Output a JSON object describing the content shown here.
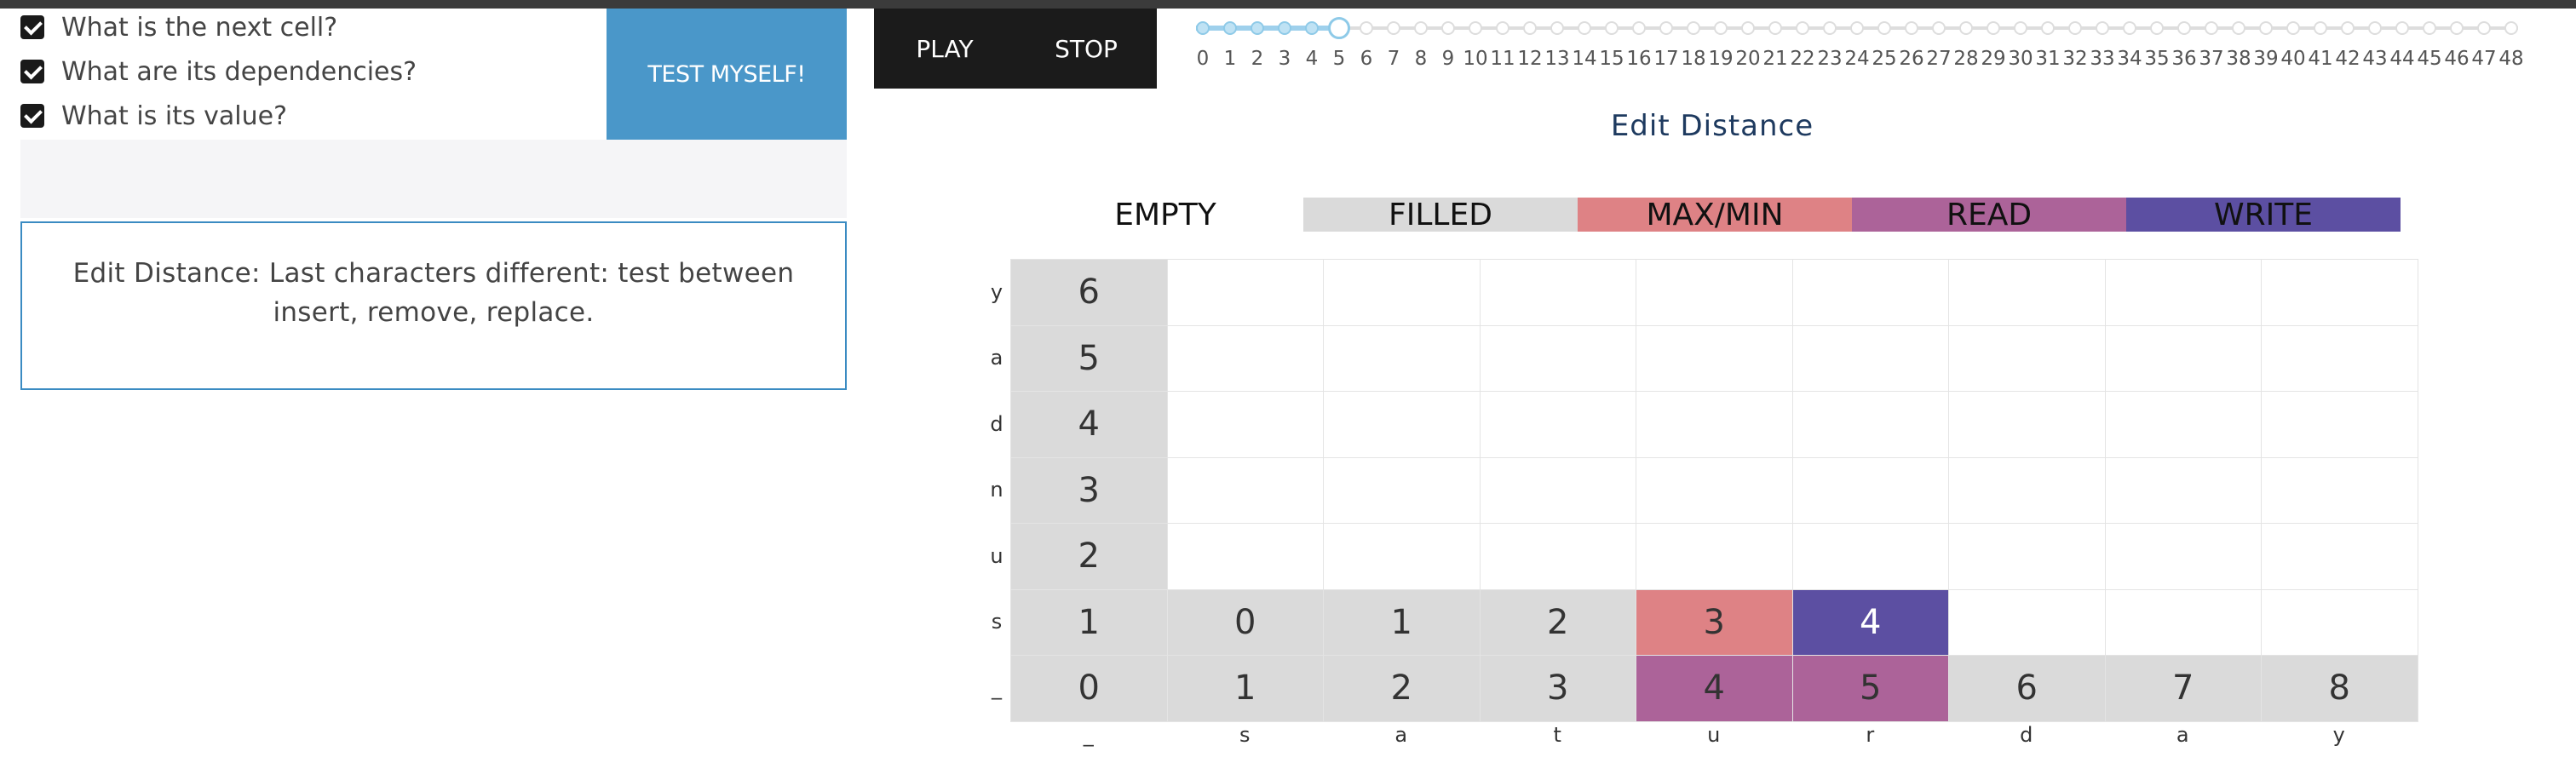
{
  "questions": [
    {
      "label": "What is the next cell?",
      "checked": true
    },
    {
      "label": "What are its dependencies?",
      "checked": true
    },
    {
      "label": "What is its value?",
      "checked": true
    }
  ],
  "test_button": "TEST MYSELF!",
  "message": "Edit Distance: Last characters different: test between insert, remove, replace.",
  "controls": {
    "play": "PLAY",
    "stop": "STOP"
  },
  "slider": {
    "current": 5,
    "steps": [
      "0",
      "1",
      "2",
      "3",
      "4",
      "5",
      "6",
      "7",
      "8",
      "9",
      "10",
      "11",
      "12",
      "13",
      "14",
      "15",
      "16",
      "17",
      "18",
      "19",
      "20",
      "21",
      "22",
      "23",
      "24",
      "25",
      "26",
      "27",
      "28",
      "29",
      "30",
      "31",
      "32",
      "33",
      "34",
      "35",
      "36",
      "37",
      "38",
      "39",
      "40",
      "41",
      "42",
      "43",
      "44",
      "45",
      "46",
      "47",
      "48"
    ]
  },
  "title": "Edit Distance",
  "legend": [
    {
      "label": "EMPTY",
      "color": "#ffffff"
    },
    {
      "label": "FILLED",
      "color": "#dadada"
    },
    {
      "label": "MAX/MIN",
      "color": "#de8285"
    },
    {
      "label": "READ",
      "color": "#ac6399"
    },
    {
      "label": "WRITE",
      "color": "#5c4fa2"
    }
  ],
  "grid": {
    "row_labels": [
      "y",
      "a",
      "d",
      "n",
      "u",
      "s",
      "_"
    ],
    "col_labels": [
      "_",
      "s",
      "a",
      "t",
      "u",
      "r",
      "d",
      "a",
      "y"
    ],
    "cells": [
      [
        {
          "v": "6",
          "s": "filled"
        },
        {
          "v": "",
          "s": "empty"
        },
        {
          "v": "",
          "s": "empty"
        },
        {
          "v": "",
          "s": "empty"
        },
        {
          "v": "",
          "s": "empty"
        },
        {
          "v": "",
          "s": "empty"
        },
        {
          "v": "",
          "s": "empty"
        },
        {
          "v": "",
          "s": "empty"
        },
        {
          "v": "",
          "s": "empty"
        }
      ],
      [
        {
          "v": "5",
          "s": "filled"
        },
        {
          "v": "",
          "s": "empty"
        },
        {
          "v": "",
          "s": "empty"
        },
        {
          "v": "",
          "s": "empty"
        },
        {
          "v": "",
          "s": "empty"
        },
        {
          "v": "",
          "s": "empty"
        },
        {
          "v": "",
          "s": "empty"
        },
        {
          "v": "",
          "s": "empty"
        },
        {
          "v": "",
          "s": "empty"
        }
      ],
      [
        {
          "v": "4",
          "s": "filled"
        },
        {
          "v": "",
          "s": "empty"
        },
        {
          "v": "",
          "s": "empty"
        },
        {
          "v": "",
          "s": "empty"
        },
        {
          "v": "",
          "s": "empty"
        },
        {
          "v": "",
          "s": "empty"
        },
        {
          "v": "",
          "s": "empty"
        },
        {
          "v": "",
          "s": "empty"
        },
        {
          "v": "",
          "s": "empty"
        }
      ],
      [
        {
          "v": "3",
          "s": "filled"
        },
        {
          "v": "",
          "s": "empty"
        },
        {
          "v": "",
          "s": "empty"
        },
        {
          "v": "",
          "s": "empty"
        },
        {
          "v": "",
          "s": "empty"
        },
        {
          "v": "",
          "s": "empty"
        },
        {
          "v": "",
          "s": "empty"
        },
        {
          "v": "",
          "s": "empty"
        },
        {
          "v": "",
          "s": "empty"
        }
      ],
      [
        {
          "v": "2",
          "s": "filled"
        },
        {
          "v": "",
          "s": "empty"
        },
        {
          "v": "",
          "s": "empty"
        },
        {
          "v": "",
          "s": "empty"
        },
        {
          "v": "",
          "s": "empty"
        },
        {
          "v": "",
          "s": "empty"
        },
        {
          "v": "",
          "s": "empty"
        },
        {
          "v": "",
          "s": "empty"
        },
        {
          "v": "",
          "s": "empty"
        }
      ],
      [
        {
          "v": "1",
          "s": "filled"
        },
        {
          "v": "0",
          "s": "filled"
        },
        {
          "v": "1",
          "s": "filled"
        },
        {
          "v": "2",
          "s": "filled"
        },
        {
          "v": "3",
          "s": "maxmin"
        },
        {
          "v": "4",
          "s": "write"
        },
        {
          "v": "",
          "s": "empty"
        },
        {
          "v": "",
          "s": "empty"
        },
        {
          "v": "",
          "s": "empty"
        }
      ],
      [
        {
          "v": "0",
          "s": "filled"
        },
        {
          "v": "1",
          "s": "filled"
        },
        {
          "v": "2",
          "s": "filled"
        },
        {
          "v": "3",
          "s": "filled"
        },
        {
          "v": "4",
          "s": "read"
        },
        {
          "v": "5",
          "s": "read"
        },
        {
          "v": "6",
          "s": "filled"
        },
        {
          "v": "7",
          "s": "filled"
        },
        {
          "v": "8",
          "s": "filled"
        }
      ]
    ]
  },
  "colors": {
    "empty": "#ffffff",
    "filled": "#dadada",
    "maxmin": "#de8285",
    "read": "#ac6399",
    "write": "#5c4fa2"
  }
}
